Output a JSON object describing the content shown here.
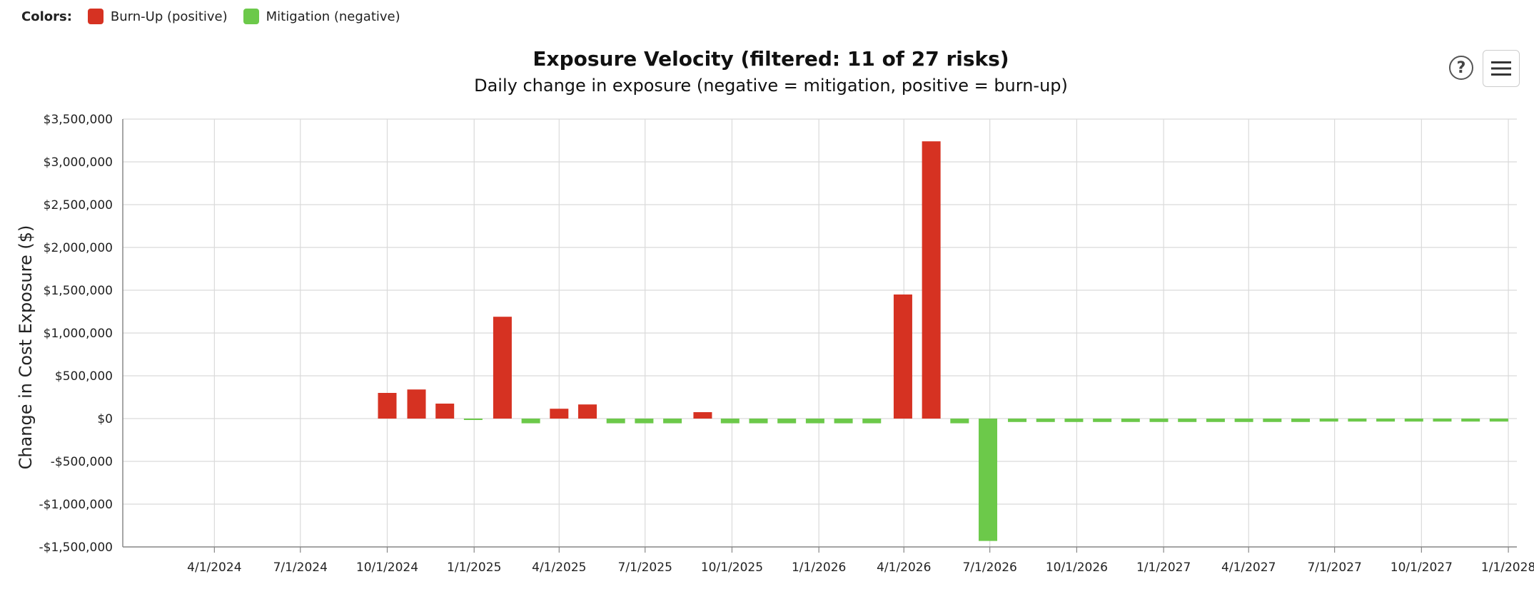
{
  "legend": {
    "label": "Colors:",
    "items": [
      {
        "label": "Burn-Up (positive)",
        "color": "#d63222"
      },
      {
        "label": "Mitigation (negative)",
        "color": "#6cc94a"
      }
    ]
  },
  "header": {
    "title": "Exposure Velocity (filtered: 11 of 27 risks)",
    "subtitle": "Daily change in exposure (negative = mitigation, positive = burn-up)",
    "help_label": "?",
    "menu_icon": "hamburger-menu-icon"
  },
  "chart_data": {
    "type": "bar",
    "title": "Exposure Velocity (filtered: 11 of 27 risks)",
    "subtitle": "Daily change in exposure (negative = mitigation, positive = burn-up)",
    "xlabel": "",
    "ylabel": "Change in Cost Exposure ($)",
    "ylim": [
      -1500000,
      3500000
    ],
    "yticks": [
      3500000,
      3000000,
      2500000,
      2000000,
      1500000,
      1000000,
      500000,
      0,
      -500000,
      -1000000,
      -1500000
    ],
    "ytick_labels": [
      "$3,500,000",
      "$3,000,000",
      "$2,500,000",
      "$2,000,000",
      "$1,500,000",
      "$1,000,000",
      "$500,000",
      "$0",
      "-$500,000",
      "-$1,000,000",
      "-$1,500,000"
    ],
    "xlim": [
      "2023-12-26",
      "2028-01-10"
    ],
    "xticks": [
      "2024-04-01",
      "2024-07-01",
      "2024-10-01",
      "2025-01-01",
      "2025-04-01",
      "2025-07-01",
      "2025-10-01",
      "2026-01-01",
      "2026-04-01",
      "2026-07-01",
      "2026-10-01",
      "2027-01-01",
      "2027-04-01",
      "2027-07-01",
      "2027-10-01",
      "2028-01-01"
    ],
    "xtick_labels": [
      "4/1/2024",
      "7/1/2024",
      "10/1/2024",
      "1/1/2025",
      "4/1/2025",
      "7/1/2025",
      "10/1/2025",
      "1/1/2026",
      "4/1/2026",
      "7/1/2026",
      "10/1/2026",
      "1/1/2027",
      "4/1/2027",
      "7/1/2027",
      "10/1/2027",
      "1/1/2028"
    ],
    "grid": true,
    "positive_color": "#d63222",
    "negative_color": "#6cc94a",
    "series": [
      {
        "name": "Burn-Up (positive)",
        "points": [
          {
            "x": "2024-10-01",
            "y": 300000
          },
          {
            "x": "2024-11-01",
            "y": 340000
          },
          {
            "x": "2024-12-01",
            "y": 175000
          },
          {
            "x": "2025-01-31",
            "y": 1190000
          },
          {
            "x": "2025-04-01",
            "y": 115000
          },
          {
            "x": "2025-05-01",
            "y": 165000
          },
          {
            "x": "2025-08-31",
            "y": 75000
          },
          {
            "x": "2026-03-31",
            "y": 1450000
          },
          {
            "x": "2026-04-30",
            "y": 3240000
          }
        ]
      },
      {
        "name": "Mitigation (negative)",
        "points": [
          {
            "x": "2024-12-31",
            "y": -15000
          },
          {
            "x": "2025-03-02",
            "y": -55000
          },
          {
            "x": "2025-05-31",
            "y": -55000
          },
          {
            "x": "2025-06-30",
            "y": -55000
          },
          {
            "x": "2025-07-30",
            "y": -55000
          },
          {
            "x": "2025-09-29",
            "y": -55000
          },
          {
            "x": "2025-10-29",
            "y": -55000
          },
          {
            "x": "2025-11-28",
            "y": -55000
          },
          {
            "x": "2025-12-28",
            "y": -55000
          },
          {
            "x": "2026-01-27",
            "y": -55000
          },
          {
            "x": "2026-02-26",
            "y": -55000
          },
          {
            "x": "2026-05-30",
            "y": -55000
          },
          {
            "x": "2026-06-29",
            "y": -1430000
          },
          {
            "x": "2026-07-30",
            "y": -40000
          },
          {
            "x": "2026-08-29",
            "y": -40000
          },
          {
            "x": "2026-09-28",
            "y": -40000
          },
          {
            "x": "2026-10-28",
            "y": -40000
          },
          {
            "x": "2026-11-27",
            "y": -40000
          },
          {
            "x": "2026-12-27",
            "y": -40000
          },
          {
            "x": "2027-01-26",
            "y": -40000
          },
          {
            "x": "2027-02-25",
            "y": -40000
          },
          {
            "x": "2027-03-27",
            "y": -40000
          },
          {
            "x": "2027-04-26",
            "y": -40000
          },
          {
            "x": "2027-05-26",
            "y": -40000
          },
          {
            "x": "2027-06-25",
            "y": -35000
          },
          {
            "x": "2027-07-25",
            "y": -35000
          },
          {
            "x": "2027-08-24",
            "y": -35000
          },
          {
            "x": "2027-09-23",
            "y": -35000
          },
          {
            "x": "2027-10-23",
            "y": -35000
          },
          {
            "x": "2027-11-22",
            "y": -35000
          },
          {
            "x": "2027-12-22",
            "y": -35000
          }
        ]
      }
    ]
  }
}
